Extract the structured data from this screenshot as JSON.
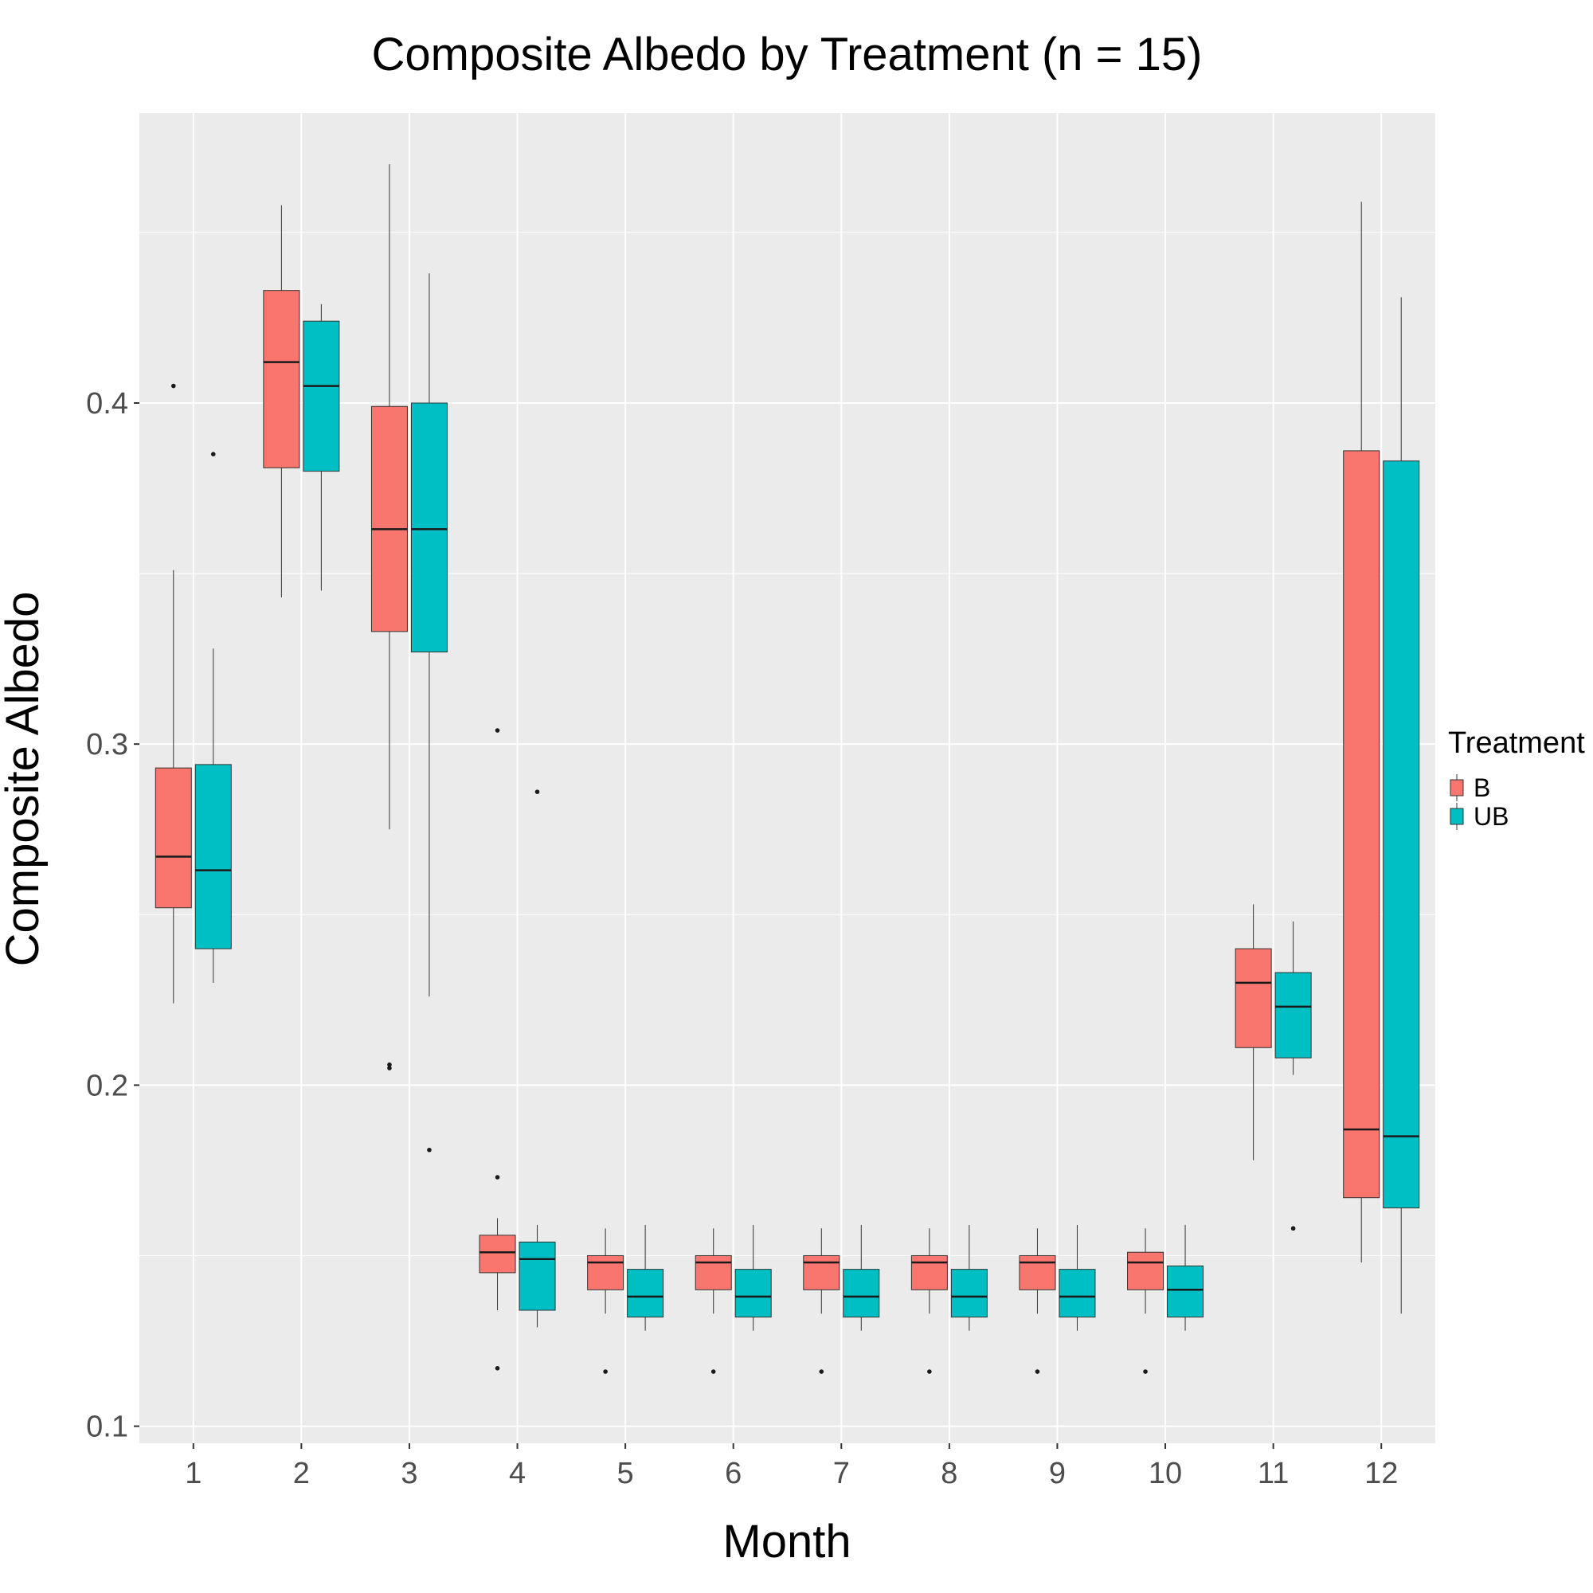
{
  "chart_data": {
    "type": "boxplot",
    "title": "Composite Albedo by Treatment (n = 15)",
    "xlabel": "Month",
    "ylabel": "Composite Albedo",
    "categories": [
      "1",
      "2",
      "3",
      "4",
      "5",
      "6",
      "7",
      "8",
      "9",
      "10",
      "11",
      "12"
    ],
    "ylim": [
      0.095,
      0.485
    ],
    "yticks": [
      0.1,
      0.2,
      0.3,
      0.4
    ],
    "ytick_labels": [
      "0.1",
      "0.2",
      "0.3",
      "0.4"
    ],
    "grid": true,
    "legend": {
      "title": "Treatment",
      "position": "right"
    },
    "series": [
      {
        "name": "B",
        "color": "#F8766D",
        "boxes": [
          {
            "min": 0.224,
            "q1": 0.252,
            "median": 0.267,
            "q3": 0.293,
            "max": 0.351,
            "outliers": [
              0.405
            ]
          },
          {
            "min": 0.343,
            "q1": 0.381,
            "median": 0.412,
            "q3": 0.433,
            "max": 0.458,
            "outliers": []
          },
          {
            "min": 0.275,
            "q1": 0.333,
            "median": 0.363,
            "q3": 0.399,
            "max": 0.47,
            "outliers": [
              0.206,
              0.205
            ]
          },
          {
            "min": 0.134,
            "q1": 0.145,
            "median": 0.151,
            "q3": 0.156,
            "max": 0.161,
            "outliers": [
              0.304,
              0.173,
              0.117
            ]
          },
          {
            "min": 0.133,
            "q1": 0.14,
            "median": 0.148,
            "q3": 0.15,
            "max": 0.158,
            "outliers": [
              0.116
            ]
          },
          {
            "min": 0.133,
            "q1": 0.14,
            "median": 0.148,
            "q3": 0.15,
            "max": 0.158,
            "outliers": [
              0.116
            ]
          },
          {
            "min": 0.133,
            "q1": 0.14,
            "median": 0.148,
            "q3": 0.15,
            "max": 0.158,
            "outliers": [
              0.116
            ]
          },
          {
            "min": 0.133,
            "q1": 0.14,
            "median": 0.148,
            "q3": 0.15,
            "max": 0.158,
            "outliers": [
              0.116
            ]
          },
          {
            "min": 0.133,
            "q1": 0.14,
            "median": 0.148,
            "q3": 0.15,
            "max": 0.158,
            "outliers": [
              0.116
            ]
          },
          {
            "min": 0.133,
            "q1": 0.14,
            "median": 0.148,
            "q3": 0.151,
            "max": 0.158,
            "outliers": [
              0.116
            ]
          },
          {
            "min": 0.178,
            "q1": 0.211,
            "median": 0.23,
            "q3": 0.24,
            "max": 0.253,
            "outliers": []
          },
          {
            "min": 0.148,
            "q1": 0.167,
            "median": 0.187,
            "q3": 0.386,
            "max": 0.459,
            "outliers": []
          }
        ]
      },
      {
        "name": "UB",
        "color": "#00BFC4",
        "boxes": [
          {
            "min": 0.23,
            "q1": 0.24,
            "median": 0.263,
            "q3": 0.294,
            "max": 0.328,
            "outliers": [
              0.385
            ]
          },
          {
            "min": 0.345,
            "q1": 0.38,
            "median": 0.405,
            "q3": 0.424,
            "max": 0.429,
            "outliers": []
          },
          {
            "min": 0.226,
            "q1": 0.327,
            "median": 0.363,
            "q3": 0.4,
            "max": 0.438,
            "outliers": [
              0.181
            ]
          },
          {
            "min": 0.129,
            "q1": 0.134,
            "median": 0.149,
            "q3": 0.154,
            "max": 0.159,
            "outliers": [
              0.286
            ]
          },
          {
            "min": 0.128,
            "q1": 0.132,
            "median": 0.138,
            "q3": 0.146,
            "max": 0.159,
            "outliers": []
          },
          {
            "min": 0.128,
            "q1": 0.132,
            "median": 0.138,
            "q3": 0.146,
            "max": 0.159,
            "outliers": []
          },
          {
            "min": 0.128,
            "q1": 0.132,
            "median": 0.138,
            "q3": 0.146,
            "max": 0.159,
            "outliers": []
          },
          {
            "min": 0.128,
            "q1": 0.132,
            "median": 0.138,
            "q3": 0.146,
            "max": 0.159,
            "outliers": []
          },
          {
            "min": 0.128,
            "q1": 0.132,
            "median": 0.138,
            "q3": 0.146,
            "max": 0.159,
            "outliers": []
          },
          {
            "min": 0.128,
            "q1": 0.132,
            "median": 0.14,
            "q3": 0.147,
            "max": 0.159,
            "outliers": []
          },
          {
            "min": 0.203,
            "q1": 0.208,
            "median": 0.223,
            "q3": 0.233,
            "max": 0.248,
            "outliers": [
              0.158
            ]
          },
          {
            "min": 0.133,
            "q1": 0.164,
            "median": 0.185,
            "q3": 0.383,
            "max": 0.431,
            "outliers": []
          }
        ]
      }
    ]
  }
}
